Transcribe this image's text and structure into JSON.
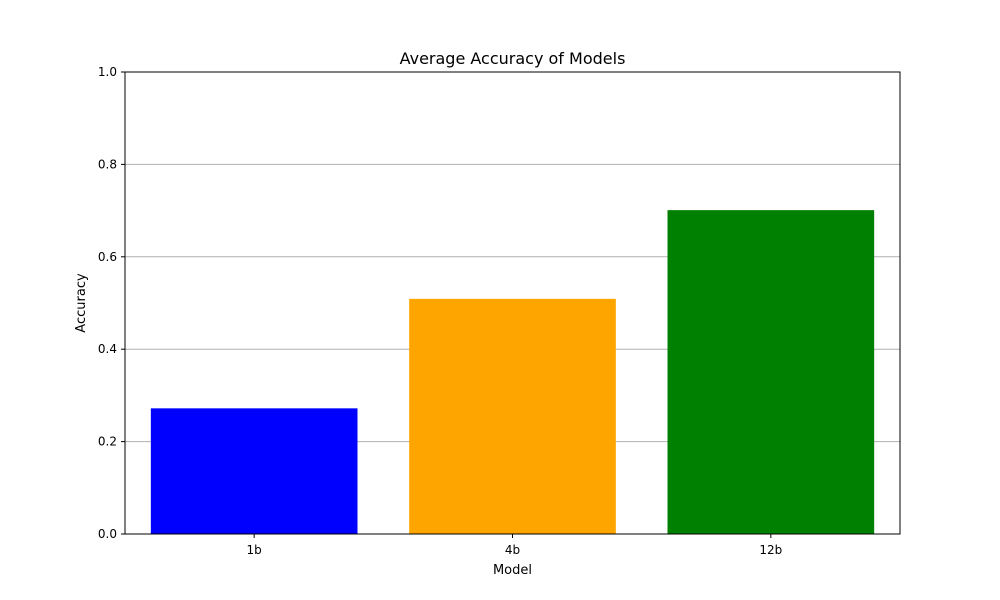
{
  "chart_data": {
    "type": "bar",
    "title": "Average Accuracy of Models",
    "xlabel": "Model",
    "ylabel": "Accuracy",
    "categories": [
      "1b",
      "4b",
      "12b"
    ],
    "values": [
      0.272,
      0.509,
      0.701
    ],
    "colors": [
      "#0000ff",
      "#ffa500",
      "#008000"
    ],
    "ylim": [
      0,
      1.0
    ],
    "yticks": [
      0.0,
      0.2,
      0.4,
      0.6,
      0.8,
      1.0
    ],
    "ytick_labels": [
      "0.0",
      "0.2",
      "0.4",
      "0.6",
      "0.8",
      "1.0"
    ],
    "grid": "horizontal",
    "grid_color": "#b0b0b0",
    "legend": "none"
  }
}
